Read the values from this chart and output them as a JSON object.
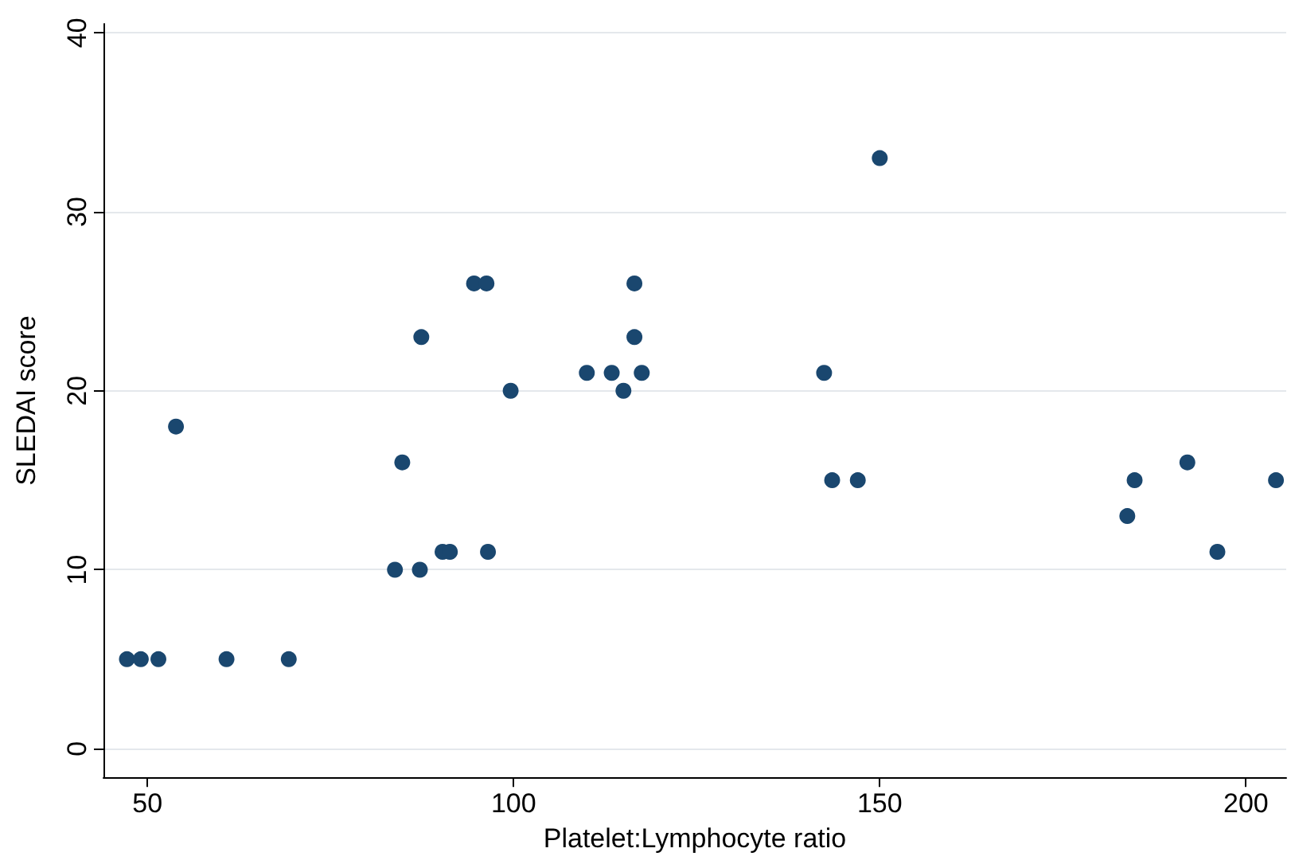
{
  "chart_data": {
    "type": "scatter",
    "xlabel": "Platelet:Lymphocyte ratio",
    "ylabel": "SLEDAI score",
    "x": [
      47.2,
      49.1,
      51.5,
      53.9,
      60.8,
      69.3,
      83.8,
      84.8,
      87.2,
      87.4,
      90.3,
      91.3,
      94.6,
      96.3,
      96.5,
      99.6,
      110,
      113.4,
      115,
      116.5,
      116.5,
      117.5,
      142.4,
      143.5,
      147,
      150,
      183.8,
      184.8,
      192,
      196.1,
      204.1
    ],
    "values": [
      5,
      5,
      5,
      18,
      5,
      5,
      10,
      16,
      10,
      23,
      11,
      11,
      26,
      26,
      11,
      20,
      21,
      21,
      20,
      26,
      23,
      21,
      21,
      15,
      15,
      33,
      13,
      15,
      16,
      11,
      15
    ],
    "color": "#1a476f",
    "marker": "circle",
    "xlim": [
      44,
      205.5
    ],
    "ylim": [
      -1.6,
      40.5
    ],
    "xticks": [
      50,
      100,
      150,
      200
    ],
    "yticks": [
      0,
      10,
      20,
      30,
      40
    ],
    "grid": "y"
  }
}
